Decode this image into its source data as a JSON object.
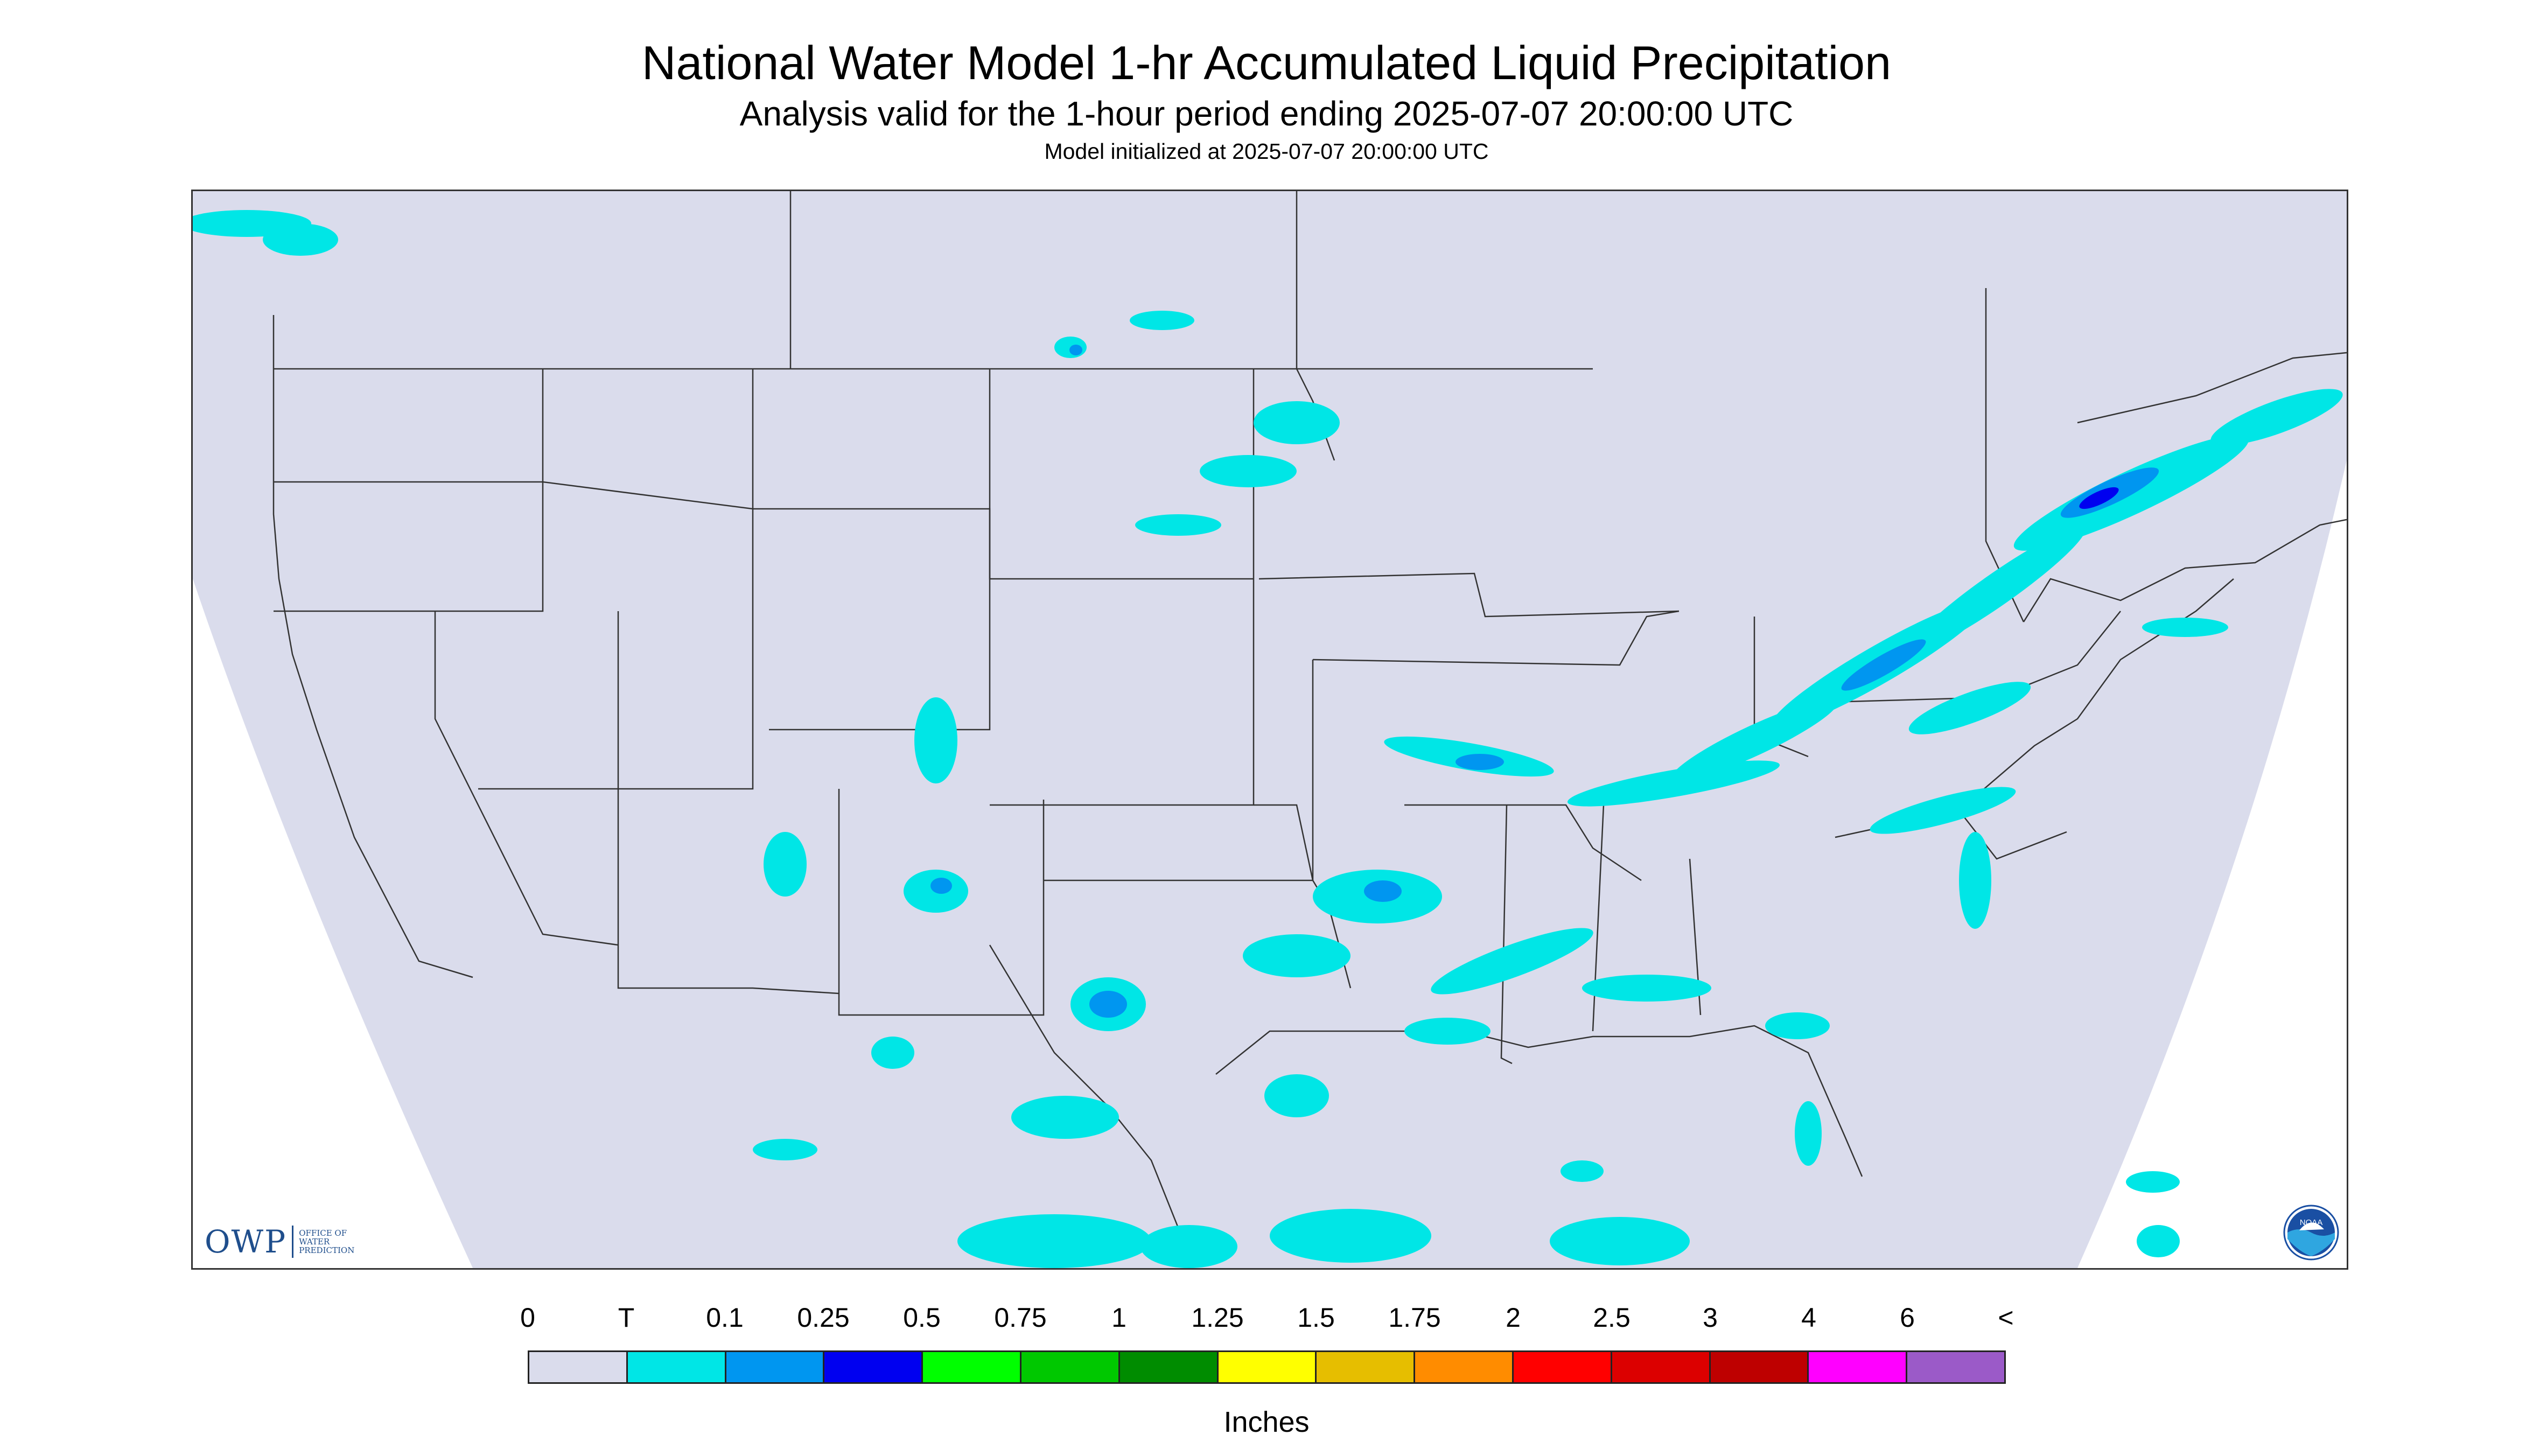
{
  "header": {
    "title": "National Water Model 1-hr Accumulated Liquid Precipitation",
    "subtitle": "Analysis valid for the 1-hour period ending 2025-07-07 20:00:00 UTC",
    "init_line": "Model initialized at 2025-07-07 20:00:00 UTC"
  },
  "map": {
    "region": "Continental United States",
    "background_color": "#dadcec",
    "outside_domain_color": "#ffffff",
    "boundary_color": "#333333",
    "logos": {
      "owp": {
        "text": "OWP",
        "subtext": "Office of Water Prediction",
        "icon": "owp-logo-icon"
      },
      "noaa": {
        "icon": "noaa-logo-icon",
        "text": "NOAA"
      }
    }
  },
  "legend": {
    "tick_labels": [
      "0",
      "T",
      "0.1",
      "0.25",
      "0.5",
      "0.75",
      "1",
      "1.25",
      "1.5",
      "1.75",
      "2",
      "2.5",
      "3",
      "4",
      "6",
      "<"
    ],
    "colors": [
      "#dadcec",
      "#00e6e6",
      "#0096f0",
      "#0000f0",
      "#00ff00",
      "#00c800",
      "#008c00",
      "#ffff00",
      "#e6be00",
      "#ff8c00",
      "#ff0000",
      "#dc0000",
      "#be0000",
      "#ff00ff",
      "#9b5ac8"
    ],
    "units_label": "Inches"
  }
}
